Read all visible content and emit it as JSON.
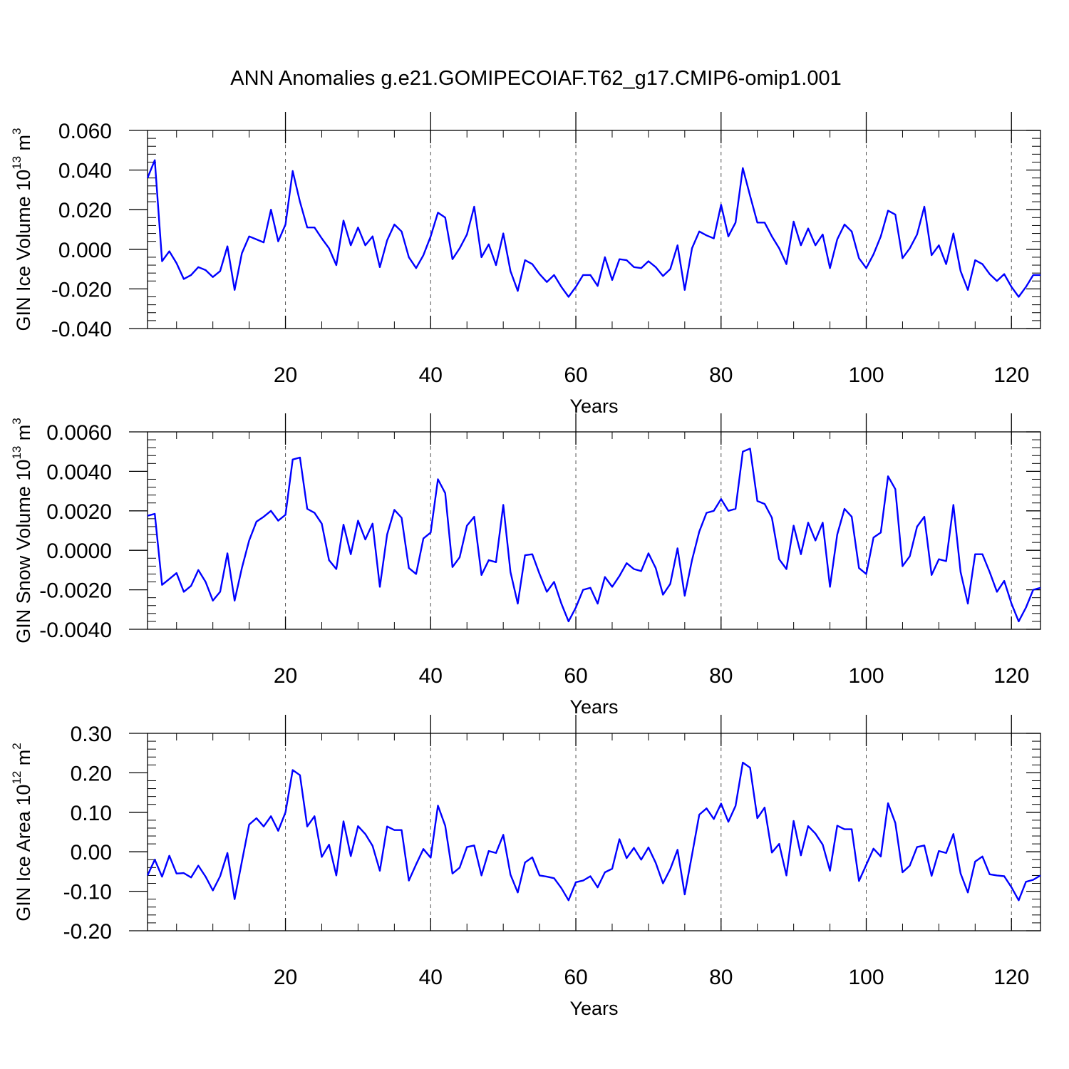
{
  "title": "ANN Anomalies g.e21.GOMIPECOIAF.T62_g17.CMIP6-omip1.001",
  "colors": {
    "line": "#0000ff",
    "frame": "#000000",
    "grid": "#555555"
  },
  "chart_data": [
    {
      "type": "line",
      "ylabel": {
        "base": "GIN Ice Volume 10",
        "exponent": "13",
        "unit_prefix": " m",
        "unit_exponent": "3"
      },
      "xlabel": "Years",
      "xlim": [
        1,
        124
      ],
      "ylim": [
        -0.04,
        0.06
      ],
      "ytick_values": [
        -0.04,
        -0.02,
        0.0,
        0.02,
        0.04,
        0.06
      ],
      "ytick_labels": [
        "-0.040",
        "-0.020",
        "0.000",
        "0.020",
        "0.040",
        "0.060"
      ],
      "xtick_values": [
        20,
        40,
        60,
        80,
        100,
        120
      ],
      "xtick_labels": [
        "20",
        "40",
        "60",
        "80",
        "100",
        "120"
      ],
      "grid": "vertical dashed at major x ticks",
      "x_start": 1,
      "series": [
        {
          "values": [
            0.036,
            0.045,
            -0.006,
            -0.001,
            -0.007,
            -0.015,
            -0.013,
            -0.009,
            -0.0105,
            -0.014,
            -0.011,
            0.0015,
            -0.0205,
            -0.002,
            0.0065,
            0.005,
            0.0035,
            0.02,
            0.004,
            0.0125,
            0.0395,
            0.024,
            0.011,
            0.011,
            0.0055,
            0.0005,
            -0.008,
            0.0145,
            0.002,
            0.011,
            0.002,
            0.0065,
            -0.009,
            0.0045,
            0.0125,
            0.009,
            -0.004,
            -0.0095,
            -0.003,
            0.0065,
            0.0185,
            0.016,
            -0.005,
            0.0005,
            0.0075,
            0.0215,
            -0.004,
            0.0025,
            -0.008,
            0.008,
            -0.011,
            -0.021,
            -0.0055,
            -0.0075,
            -0.0125,
            -0.0165,
            -0.013,
            -0.019,
            -0.024,
            -0.019,
            -0.013,
            -0.013,
            -0.0185,
            -0.004,
            -0.0155,
            -0.005,
            -0.0055,
            -0.009,
            -0.0095,
            -0.006,
            -0.009,
            -0.0135,
            -0.01,
            0.002,
            -0.0205,
            0.0005,
            0.009,
            0.007,
            0.0055,
            0.0225,
            0.0065,
            0.0135,
            0.041,
            0.027,
            0.0135,
            0.0135,
            0.0065,
            0.0005,
            -0.0075,
            0.014,
            0.002,
            0.0105,
            0.002,
            0.0075,
            -0.0095,
            0.005,
            0.0125,
            0.009,
            -0.0045,
            -0.0095,
            -0.0025,
            0.0065,
            0.0195,
            0.0175,
            -0.0045,
            0.0005,
            0.0075,
            0.0215,
            -0.003,
            0.002,
            -0.0075,
            0.008,
            -0.011,
            -0.0205,
            -0.0055,
            -0.0075,
            -0.0125,
            -0.016,
            -0.0125,
            -0.019,
            -0.024,
            -0.019,
            -0.013,
            -0.013
          ]
        }
      ]
    },
    {
      "type": "line",
      "ylabel": {
        "base": "GIN Snow Volume 10",
        "exponent": "13",
        "unit_prefix": " m",
        "unit_exponent": "3"
      },
      "xlabel": "Years",
      "xlim": [
        1,
        124
      ],
      "ylim": [
        -0.004,
        0.006
      ],
      "ytick_values": [
        -0.004,
        -0.002,
        0.0,
        0.002,
        0.004,
        0.006
      ],
      "ytick_labels": [
        "-0.0040",
        "-0.0020",
        "0.0000",
        "0.0020",
        "0.0040",
        "0.0060"
      ],
      "xtick_values": [
        20,
        40,
        60,
        80,
        100,
        120
      ],
      "xtick_labels": [
        "20",
        "40",
        "60",
        "80",
        "100",
        "120"
      ],
      "grid": "vertical dashed at major x ticks",
      "x_start": 1,
      "series": [
        {
          "values": [
            0.00175,
            0.00185,
            -0.00175,
            -0.00145,
            -0.00115,
            -0.0021,
            -0.0018,
            -0.001,
            -0.0016,
            -0.00255,
            -0.0021,
            -0.00015,
            -0.00255,
            -0.0009,
            0.0005,
            0.00145,
            0.0017,
            0.002,
            0.0015,
            0.0018,
            0.0046,
            0.0047,
            0.0021,
            0.0019,
            0.00135,
            -0.0005,
            -0.00095,
            0.0013,
            -0.0002,
            0.0015,
            0.00055,
            0.00135,
            -0.00185,
            0.0008,
            0.00205,
            0.00165,
            -0.0009,
            -0.0012,
            0.0006,
            0.0009,
            0.0036,
            0.0029,
            -0.00085,
            -0.00035,
            0.00125,
            0.0017,
            -0.00125,
            -0.0005,
            -0.0006,
            0.0023,
            -0.0011,
            -0.0027,
            -0.00025,
            -0.0002,
            -0.0012,
            -0.0021,
            -0.0016,
            -0.0027,
            -0.0036,
            -0.0029,
            -0.002,
            -0.0019,
            -0.0027,
            -0.00135,
            -0.00185,
            -0.0013,
            -0.00065,
            -0.00095,
            -0.00105,
            -0.00015,
            -0.0009,
            -0.00225,
            -0.0017,
            0.0001,
            -0.0023,
            -0.0005,
            0.00095,
            0.0019,
            0.002,
            0.0026,
            0.002,
            0.0021,
            0.005,
            0.00515,
            0.0025,
            0.00235,
            0.00165,
            -0.00045,
            -0.00095,
            0.00125,
            -0.0002,
            0.0014,
            0.0005,
            0.0014,
            -0.00185,
            0.0008,
            0.0021,
            0.0017,
            -0.0009,
            -0.0012,
            0.00065,
            0.0009,
            0.00375,
            0.0031,
            -0.0008,
            -0.0003,
            0.0012,
            0.0017,
            -0.00125,
            -0.00045,
            -0.00055,
            0.0023,
            -0.0011,
            -0.0027,
            -0.0002,
            -0.0002,
            -0.0011,
            -0.0021,
            -0.00155,
            -0.0027,
            -0.0036,
            -0.0029,
            -0.002,
            -0.0019
          ]
        }
      ]
    },
    {
      "type": "line",
      "ylabel": {
        "base": "GIN Ice Area 10",
        "exponent": "12",
        "unit_prefix": " m",
        "unit_exponent": "2"
      },
      "xlabel": "Years",
      "xlim": [
        1,
        124
      ],
      "ylim": [
        -0.2,
        0.3
      ],
      "ytick_values": [
        -0.2,
        -0.1,
        0.0,
        0.1,
        0.2,
        0.3
      ],
      "ytick_labels": [
        "-0.20",
        "-0.10",
        "0.00",
        "0.10",
        "0.20",
        "0.30"
      ],
      "xtick_values": [
        20,
        40,
        60,
        80,
        100,
        120
      ],
      "xtick_labels": [
        "20",
        "40",
        "60",
        "80",
        "100",
        "120"
      ],
      "grid": "vertical dashed at major x ticks",
      "x_start": 1,
      "series": [
        {
          "values": [
            -0.06,
            -0.02,
            -0.063,
            -0.01,
            -0.055,
            -0.054,
            -0.065,
            -0.035,
            -0.063,
            -0.098,
            -0.062,
            -0.003,
            -0.12,
            -0.025,
            0.069,
            0.085,
            0.064,
            0.09,
            0.053,
            0.1,
            0.207,
            0.194,
            0.064,
            0.09,
            -0.013,
            0.018,
            -0.06,
            0.077,
            -0.011,
            0.065,
            0.045,
            0.015,
            -0.048,
            0.064,
            0.055,
            0.055,
            -0.073,
            -0.032,
            0.007,
            -0.015,
            0.117,
            0.066,
            -0.055,
            -0.04,
            0.012,
            0.016,
            -0.06,
            0.002,
            -0.003,
            0.043,
            -0.058,
            -0.103,
            -0.027,
            -0.014,
            -0.06,
            -0.063,
            -0.067,
            -0.092,
            -0.123,
            -0.077,
            -0.073,
            -0.062,
            -0.09,
            -0.052,
            -0.043,
            0.032,
            -0.016,
            0.01,
            -0.02,
            0.011,
            -0.028,
            -0.08,
            -0.044,
            0.005,
            -0.108,
            -0.008,
            0.094,
            0.11,
            0.083,
            0.122,
            0.076,
            0.116,
            0.226,
            0.213,
            0.085,
            0.112,
            -0.002,
            0.02,
            -0.06,
            0.078,
            -0.009,
            0.065,
            0.046,
            0.018,
            -0.048,
            0.066,
            0.057,
            0.057,
            -0.074,
            -0.033,
            0.008,
            -0.012,
            0.123,
            0.073,
            -0.052,
            -0.035,
            0.012,
            0.016,
            -0.061,
            0.002,
            -0.003,
            0.045,
            -0.055,
            -0.103,
            -0.025,
            -0.012,
            -0.057,
            -0.06,
            -0.062,
            -0.09,
            -0.123,
            -0.076,
            -0.071,
            -0.06
          ]
        }
      ]
    }
  ]
}
